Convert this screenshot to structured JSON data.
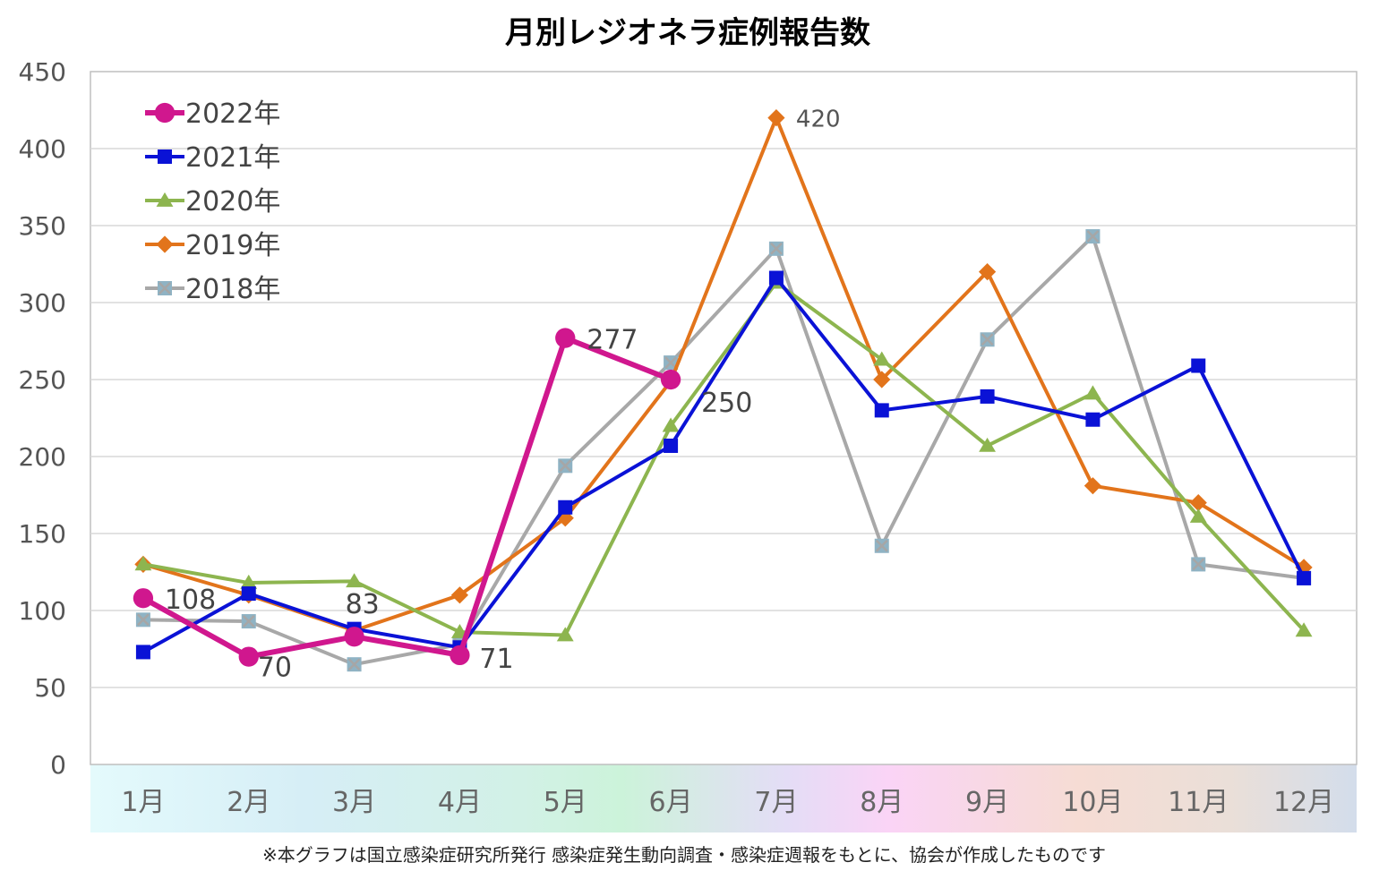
{
  "chart_data": {
    "type": "line",
    "title": "月別レジオネラ症例報告数",
    "xlabel": "",
    "ylabel": "",
    "ylim": [
      0,
      450
    ],
    "yticks": [
      0,
      50,
      100,
      150,
      200,
      250,
      300,
      350,
      400,
      450
    ],
    "categories": [
      "1月",
      "2月",
      "3月",
      "4月",
      "5月",
      "6月",
      "7月",
      "8月",
      "9月",
      "10月",
      "11月",
      "12月"
    ],
    "grid": true,
    "legend_position": "top-left",
    "series": [
      {
        "name": "2022年",
        "color": "#D0178E",
        "marker": "circle",
        "values": [
          108,
          70,
          83,
          71,
          277,
          250,
          null,
          null,
          null,
          null,
          null,
          null
        ]
      },
      {
        "name": "2021年",
        "color": "#0A12D6",
        "marker": "square",
        "values": [
          73,
          111,
          88,
          76,
          167,
          207,
          316,
          230,
          239,
          224,
          259,
          121
        ]
      },
      {
        "name": "2020年",
        "color": "#8DB54F",
        "marker": "triangle",
        "values": [
          130,
          118,
          119,
          86,
          84,
          220,
          313,
          263,
          207,
          241,
          161,
          87
        ]
      },
      {
        "name": "2019年",
        "color": "#E2741B",
        "marker": "diamond",
        "values": [
          130,
          110,
          87,
          110,
          160,
          249,
          420,
          250,
          320,
          181,
          170,
          128
        ]
      },
      {
        "name": "2018年",
        "color": "#A8A8A8",
        "marker": "x-square",
        "values": [
          94,
          93,
          65,
          78,
          194,
          261,
          335,
          142,
          276,
          343,
          130,
          121
        ]
      }
    ],
    "data_labels": [
      {
        "text": "108",
        "series": "2022年",
        "index": 0
      },
      {
        "text": "70",
        "series": "2022年",
        "index": 1
      },
      {
        "text": "83",
        "series": "2022年",
        "index": 2
      },
      {
        "text": "71",
        "series": "2022年",
        "index": 3
      },
      {
        "text": "277",
        "series": "2022年",
        "index": 4
      },
      {
        "text": "250",
        "series": "2022年",
        "index": 5
      },
      {
        "text": "420",
        "series": "2019年",
        "index": 6
      }
    ],
    "note": "※本グラフは国立感染症研究所発行 感染症発生動向調査・感染症週報をもとに、協会が作成したものです"
  }
}
